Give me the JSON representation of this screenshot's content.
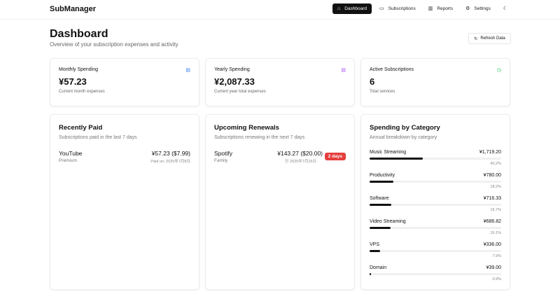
{
  "header": {
    "brand": "SubManager",
    "nav": [
      {
        "label": "Dashboard",
        "icon": "home-icon"
      },
      {
        "label": "Subscriptions",
        "icon": "credit-card-icon"
      },
      {
        "label": "Reports",
        "icon": "bar-chart-icon"
      },
      {
        "label": "Settings",
        "icon": "gear-icon"
      }
    ],
    "theme_icon": "moon-icon"
  },
  "page": {
    "title": "Dashboard",
    "subtitle": "Overview of your subscription expenses and activity",
    "refresh": "Refresh Data"
  },
  "stats": [
    {
      "label": "Monthly Spending",
      "value": "¥57.23",
      "note": "Current month expenses",
      "icon": "calendar-icon",
      "color": "#3b82f6"
    },
    {
      "label": "Yearly Spending",
      "value": "¥2,087.33",
      "note": "Current year total expenses",
      "icon": "calendar-icon",
      "color": "#a855f7"
    },
    {
      "label": "Active Subscriptions",
      "value": "6",
      "note": "Total services",
      "icon": "clock-icon",
      "color": "#22c55e"
    }
  ],
  "recent": {
    "title": "Recently Paid",
    "desc": "Subscriptions paid in the last 7 days",
    "items": [
      {
        "name": "YouTube",
        "plan": "Premium",
        "amount": "¥57.23 ($7.99)",
        "date": "Paid on: 2025年7月8日"
      }
    ]
  },
  "upcoming": {
    "title": "Upcoming Renewals",
    "desc": "Subscriptions renewing in the next 7 days",
    "items": [
      {
        "name": "Spotify",
        "plan": "Family",
        "amount": "¥143.27 ($20.00)",
        "date": "2025年7月15日",
        "badge": "2 days"
      }
    ]
  },
  "category": {
    "title": "Spending by Category",
    "desc": "Annual breakdown by category",
    "items": [
      {
        "name": "Music Streaming",
        "value": "¥1,719.20",
        "percent": "40.2%",
        "pct": 40.2
      },
      {
        "name": "Productivity",
        "value": "¥780.00",
        "percent": "18.2%",
        "pct": 18.2
      },
      {
        "name": "Software",
        "value": "¥716.33",
        "percent": "16.7%",
        "pct": 16.7
      },
      {
        "name": "Video Streaming",
        "value": "¥686.82",
        "percent": "16.1%",
        "pct": 16.1
      },
      {
        "name": "VPS",
        "value": "¥336.00",
        "percent": "7.9%",
        "pct": 7.9
      },
      {
        "name": "Domain",
        "value": "¥39.00",
        "percent": "0.9%",
        "pct": 0.9
      }
    ]
  }
}
